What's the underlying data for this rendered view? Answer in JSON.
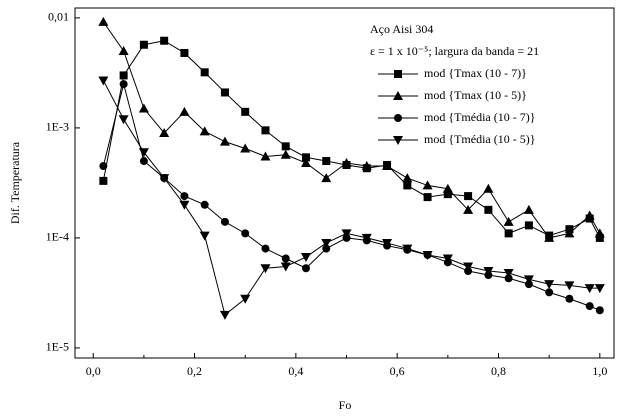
{
  "chart_data": {
    "type": "line",
    "x_label": "Fo",
    "y_label": "Dif. Temperatura",
    "annotations": [
      "Aço Aisi 304",
      "ε = 1 x 10⁻⁵;  largura da banda = 21"
    ],
    "log_y": true,
    "grid": false,
    "legend": "upper right",
    "xlim": [
      -0.036,
      1.028
    ],
    "ylim": [
      8.1e-06,
      0.0123
    ],
    "xticks": [
      {
        "value": 0,
        "label": "0,0"
      },
      {
        "value": 0.2,
        "label": "0,2"
      },
      {
        "value": 0.4,
        "label": "0,4"
      },
      {
        "value": 0.6,
        "label": "0,6"
      },
      {
        "value": 0.8,
        "label": "0,8"
      },
      {
        "value": 1.0,
        "label": "1,0"
      }
    ],
    "yticks": [
      {
        "value": 1e-05,
        "label": "1E-5"
      },
      {
        "value": 0.0001,
        "label": "1E-4"
      },
      {
        "value": 0.001,
        "label": "1E-3"
      },
      {
        "value": 0.01,
        "label": "0,01"
      }
    ],
    "x": [
      0.02,
      0.06,
      0.1,
      0.14,
      0.18,
      0.22,
      0.26,
      0.3,
      0.34,
      0.38,
      0.42,
      0.46,
      0.5,
      0.54,
      0.58,
      0.62,
      0.66,
      0.7,
      0.74,
      0.78,
      0.82,
      0.86,
      0.9,
      0.94,
      0.98,
      1.0
    ],
    "series": [
      {
        "name": "mod {Tmax (10 - 7)}",
        "color": "#000000",
        "marker": "square",
        "values": [
          0.00033,
          0.003,
          0.0057,
          0.0062,
          0.0048,
          0.0032,
          0.0021,
          0.0014,
          0.00095,
          0.00068,
          0.00054,
          0.0005,
          0.00046,
          0.00043,
          0.00046,
          0.0003,
          0.000235,
          0.00025,
          0.00024,
          0.00018,
          0.00011,
          0.00013,
          0.000105,
          0.00012,
          0.00015,
          0.0001
        ]
      },
      {
        "name": "mod {Tmax (10 - 5)}",
        "color": "#000000",
        "marker": "triangle",
        "values": [
          0.0092,
          0.005,
          0.0015,
          0.0009,
          0.0014,
          0.00093,
          0.00075,
          0.00065,
          0.00055,
          0.00057,
          0.00048,
          0.00035,
          0.00048,
          0.00045,
          0.00045,
          0.00035,
          0.0003,
          0.00028,
          0.00018,
          0.00028,
          0.00014,
          0.00018,
          0.0001,
          0.00011,
          0.00016,
          0.00011
        ]
      },
      {
        "name": "mod {Tmédia (10 - 7)}",
        "color": "#000000",
        "marker": "circle",
        "values": [
          0.00045,
          0.0025,
          0.0005,
          0.00035,
          0.00024,
          0.0002,
          0.00014,
          0.00011,
          8e-05,
          6.5e-05,
          5.3e-05,
          8e-05,
          0.0001,
          9.5e-05,
          8.5e-05,
          7.8e-05,
          7e-05,
          6e-05,
          5e-05,
          4.6e-05,
          4.3e-05,
          3.8e-05,
          3.2e-05,
          2.8e-05,
          2.4e-05,
          2.2e-05
        ]
      },
      {
        "name": "mod {Tmédia (10 - 5)}",
        "color": "#000000",
        "marker": "triangle-down",
        "values": [
          0.0027,
          0.0012,
          0.0006,
          0.00035,
          0.0002,
          0.000105,
          2e-05,
          2.8e-05,
          5.3e-05,
          5.5e-05,
          6.7e-05,
          9e-05,
          0.00011,
          0.0001,
          9e-05,
          8e-05,
          7e-05,
          6.5e-05,
          5.5e-05,
          5e-05,
          4.8e-05,
          4.2e-05,
          3.8e-05,
          3.7e-05,
          3.5e-05,
          3.5e-05
        ]
      }
    ]
  }
}
